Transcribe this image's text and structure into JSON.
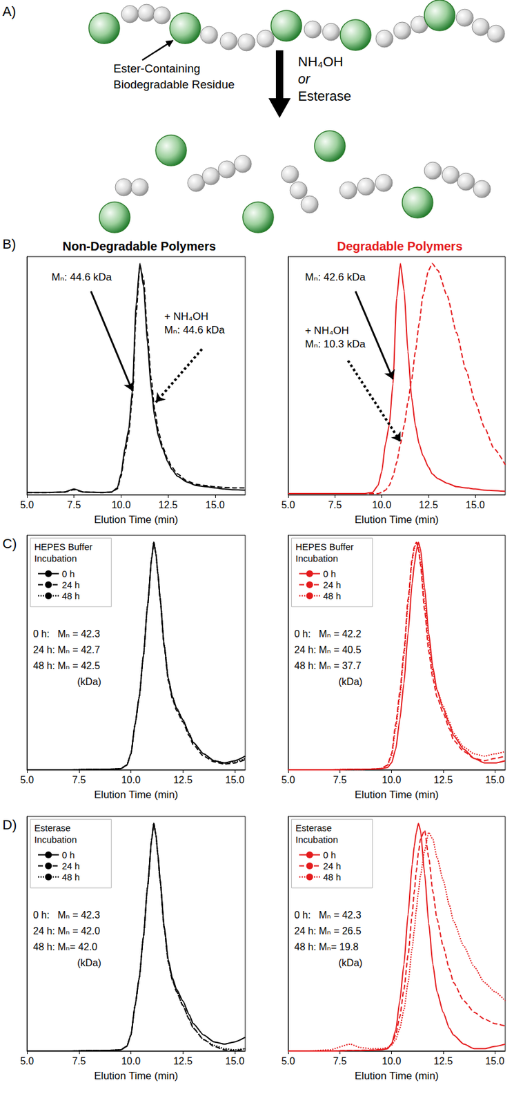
{
  "diagram": {
    "panel": "A)",
    "label": [
      "Ester-Containing",
      "Biodegradable Residue"
    ],
    "reagents": [
      "NH₄OH",
      "or",
      "Esterase"
    ]
  },
  "chart_data": [
    {
      "type": "line",
      "panel": "B)",
      "title": "Non-Degradable Polymers",
      "xlabel": "Elution Time (min)",
      "x": [
        5,
        6,
        7,
        7.5,
        8,
        9,
        9.5,
        9.8,
        10,
        10.2,
        10.4,
        10.6,
        10.8,
        11,
        11.2,
        11.4,
        11.6,
        11.8,
        12,
        12.2,
        12.5,
        12.7,
        13,
        13.5,
        14,
        14.5,
        15,
        15.5,
        16,
        16.6
      ],
      "xlim": [
        5,
        16.6
      ],
      "xticks": [
        {
          "value": 5,
          "label": "5.0"
        },
        7.5,
        {
          "value": 10,
          "label": "10.0"
        },
        12.5,
        {
          "value": 15,
          "label": "15.0"
        }
      ],
      "ylim": [
        0,
        1.03
      ],
      "tick_labels": "x",
      "grid": false,
      "series": [
        {
          "color": "#000000",
          "line_style": "solid",
          "values": [
            0.01,
            0.01,
            0.012,
            0.025,
            0.012,
            0.01,
            0.012,
            0.03,
            0.09,
            0.2,
            0.28,
            0.45,
            0.82,
            1.0,
            0.9,
            0.66,
            0.46,
            0.33,
            0.25,
            0.2,
            0.14,
            0.11,
            0.08,
            0.055,
            0.04,
            0.035,
            0.03,
            0.025,
            0.022,
            0.02
          ]
        },
        {
          "color": "#000000",
          "line_style": "dashed",
          "values": [
            0.01,
            0.01,
            0.012,
            0.022,
            0.012,
            0.01,
            0.012,
            0.025,
            0.08,
            0.18,
            0.26,
            0.42,
            0.78,
            0.99,
            0.93,
            0.7,
            0.5,
            0.36,
            0.27,
            0.21,
            0.15,
            0.12,
            0.09,
            0.06,
            0.045,
            0.04,
            0.035,
            0.032,
            0.03,
            0.03
          ]
        }
      ],
      "annotations": [
        [
          "Mₙ: 44.6 kDa"
        ],
        [
          "+ NH₄OH",
          "Mₙ: 44.6 kDa"
        ]
      ]
    },
    {
      "type": "line",
      "title": "Degradable Polymers",
      "xlabel": "Elution Time (min)",
      "x": [
        5,
        6,
        7,
        7.5,
        8,
        9,
        9.5,
        9.8,
        10,
        10.2,
        10.4,
        10.6,
        10.8,
        11,
        11.2,
        11.4,
        11.6,
        11.8,
        12,
        12.2,
        12.5,
        12.7,
        13,
        13.5,
        14,
        14.5,
        15,
        15.5,
        16,
        16.6
      ],
      "xlim": [
        5,
        16.6
      ],
      "xticks": [
        {
          "value": 5,
          "label": "5.0"
        },
        7.5,
        {
          "value": 10,
          "label": "10.0"
        },
        12.5,
        {
          "value": 15,
          "label": "15.0"
        }
      ],
      "ylim": [
        0,
        1.03
      ],
      "tick_labels": "x",
      "grid": false,
      "series": [
        {
          "color": "#e41a1c",
          "line_style": "solid",
          "values": [
            0.005,
            0.005,
            0.005,
            0.005,
            0.005,
            0.005,
            0.01,
            0.04,
            0.1,
            0.22,
            0.3,
            0.48,
            0.85,
            1.0,
            0.88,
            0.62,
            0.42,
            0.3,
            0.22,
            0.17,
            0.12,
            0.09,
            0.07,
            0.05,
            0.035,
            0.03,
            0.025,
            0.02,
            0.018,
            0.015
          ]
        },
        {
          "color": "#e41a1c",
          "line_style": "dashed",
          "values": [
            0.005,
            0.005,
            0.005,
            0.005,
            0.005,
            0.005,
            0.005,
            0.005,
            0.01,
            0.02,
            0.04,
            0.08,
            0.14,
            0.22,
            0.3,
            0.4,
            0.5,
            0.62,
            0.74,
            0.86,
            0.97,
            1.0,
            0.97,
            0.86,
            0.7,
            0.54,
            0.4,
            0.29,
            0.2,
            0.13
          ]
        }
      ],
      "annotations": [
        [
          "Mₙ: 42.6 kDa"
        ],
        [
          "+ NH₄OH",
          "Mₙ: 10.3 kDa"
        ]
      ]
    },
    {
      "type": "line",
      "panel": "C)",
      "xlabel": "Elution Time (min)",
      "x": [
        5,
        6,
        7,
        8,
        8.5,
        9,
        9.5,
        9.8,
        10,
        10.2,
        10.4,
        10.6,
        10.8,
        11,
        11.1,
        11.2,
        11.3,
        11.4,
        11.6,
        11.8,
        12,
        12.2,
        12.5,
        12.8,
        13,
        13.5,
        14,
        14.5,
        15,
        15.5
      ],
      "xlim": [
        5,
        15.5
      ],
      "xticks": [
        {
          "value": 5,
          "label": "5.0"
        },
        7.5,
        {
          "value": 10,
          "label": "10.0"
        },
        12.5,
        {
          "value": 15,
          "label": "15.0"
        }
      ],
      "ylim": [
        0,
        1.03
      ],
      "tick_labels": "x",
      "grid": false,
      "legend": "upper left",
      "legend_title": "HEPES Buffer Incubation",
      "series": [
        {
          "name": "0 h",
          "color": "#000000",
          "line_style": "solid",
          "values": [
            0,
            0,
            0,
            0.002,
            0.002,
            0.003,
            0.005,
            0.02,
            0.07,
            0.2,
            0.32,
            0.5,
            0.72,
            0.93,
            1.0,
            0.95,
            0.86,
            0.76,
            0.55,
            0.4,
            0.32,
            0.27,
            0.22,
            0.16,
            0.12,
            0.07,
            0.04,
            0.03,
            0.04,
            0.06
          ]
        },
        {
          "name": "24 h",
          "color": "#000000",
          "line_style": "dashed",
          "values": [
            0,
            0,
            0,
            0.002,
            0.002,
            0.003,
            0.005,
            0.02,
            0.07,
            0.2,
            0.32,
            0.5,
            0.72,
            0.93,
            1.0,
            0.95,
            0.86,
            0.75,
            0.54,
            0.39,
            0.31,
            0.26,
            0.21,
            0.15,
            0.11,
            0.06,
            0.035,
            0.025,
            0.03,
            0.045
          ]
        },
        {
          "name": "48 h",
          "color": "#000000",
          "line_style": "dotted",
          "values": [
            0,
            0,
            0,
            0.002,
            0.002,
            0.003,
            0.005,
            0.02,
            0.07,
            0.2,
            0.32,
            0.5,
            0.72,
            0.93,
            1.0,
            0.95,
            0.86,
            0.76,
            0.55,
            0.4,
            0.32,
            0.27,
            0.22,
            0.16,
            0.12,
            0.07,
            0.04,
            0.03,
            0.035,
            0.05
          ]
        }
      ],
      "annotations": [
        [
          "0 h:   Mₙ = 42.3",
          "24 h: Mₙ = 42.7",
          "48 h: Mₙ = 42.5",
          "(kDa)"
        ]
      ]
    },
    {
      "type": "line",
      "xlabel": "Elution Time (min)",
      "x": [
        5,
        6,
        7,
        8,
        8.5,
        9,
        9.5,
        9.8,
        10,
        10.2,
        10.4,
        10.6,
        10.8,
        11,
        11.1,
        11.2,
        11.3,
        11.4,
        11.6,
        11.8,
        12,
        12.2,
        12.5,
        12.8,
        13,
        13.5,
        14,
        14.5,
        15,
        15.5
      ],
      "xlim": [
        5,
        15.5
      ],
      "xticks": [
        {
          "value": 5,
          "label": "5.0"
        },
        7.5,
        {
          "value": 10,
          "label": "10.0"
        },
        12.5,
        {
          "value": 15,
          "label": "15.0"
        }
      ],
      "ylim": [
        0,
        1.03
      ],
      "tick_labels": "x",
      "grid": false,
      "legend": "upper left",
      "legend_title": "HEPES Buffer Incubation",
      "series": [
        {
          "name": "0 h",
          "color": "#e41a1c",
          "line_style": "solid",
          "values": [
            0,
            0,
            0,
            0.002,
            0.002,
            0.003,
            0.005,
            0.01,
            0.03,
            0.09,
            0.22,
            0.38,
            0.6,
            0.82,
            0.9,
            0.96,
            1.0,
            0.97,
            0.8,
            0.6,
            0.45,
            0.35,
            0.27,
            0.2,
            0.15,
            0.09,
            0.05,
            0.03,
            0.03,
            0.04
          ]
        },
        {
          "name": "24 h",
          "color": "#e41a1c",
          "line_style": "dashed",
          "values": [
            0,
            0,
            0,
            0.002,
            0.002,
            0.003,
            0.006,
            0.02,
            0.07,
            0.2,
            0.34,
            0.52,
            0.75,
            0.93,
            0.98,
            1.0,
            0.97,
            0.9,
            0.7,
            0.52,
            0.4,
            0.32,
            0.25,
            0.18,
            0.13,
            0.08,
            0.05,
            0.04,
            0.05,
            0.06
          ]
        },
        {
          "name": "48 h",
          "color": "#e41a1c",
          "line_style": "dotted",
          "values": [
            0,
            0,
            0,
            0.002,
            0.002,
            0.003,
            0.006,
            0.02,
            0.06,
            0.18,
            0.32,
            0.5,
            0.73,
            0.92,
            0.97,
            1.0,
            0.98,
            0.92,
            0.74,
            0.56,
            0.43,
            0.35,
            0.28,
            0.21,
            0.16,
            0.1,
            0.07,
            0.06,
            0.07,
            0.08
          ]
        }
      ],
      "annotations": [
        [
          "0 h:   Mₙ = 42.2",
          "24 h: Mₙ = 40.5",
          "48 h: Mₙ = 37.7",
          "(kDa)"
        ]
      ]
    },
    {
      "type": "line",
      "panel": "D)",
      "xlabel": "Elution Time (min)",
      "x": [
        5,
        6,
        7,
        8,
        8.5,
        9,
        9.5,
        9.8,
        10,
        10.2,
        10.4,
        10.6,
        10.8,
        11,
        11.1,
        11.2,
        11.3,
        11.4,
        11.6,
        11.8,
        12,
        12.2,
        12.5,
        12.8,
        13,
        13.5,
        14,
        14.5,
        15,
        15.5
      ],
      "xlim": [
        5,
        15.5
      ],
      "xticks": [
        {
          "value": 5,
          "label": "5.0"
        },
        7.5,
        {
          "value": 10,
          "label": "10.0"
        },
        12.5,
        {
          "value": 15,
          "label": "15.0"
        }
      ],
      "ylim": [
        0,
        1.03
      ],
      "tick_labels": "x",
      "grid": false,
      "legend": "upper left",
      "legend_title": "Esterase Incubation",
      "series": [
        {
          "name": "0 h",
          "color": "#000000",
          "line_style": "solid",
          "values": [
            0,
            0,
            0,
            0.002,
            0.002,
            0.003,
            0.005,
            0.02,
            0.07,
            0.2,
            0.32,
            0.5,
            0.72,
            0.93,
            1.0,
            0.95,
            0.86,
            0.76,
            0.55,
            0.4,
            0.32,
            0.27,
            0.22,
            0.16,
            0.12,
            0.07,
            0.04,
            0.03,
            0.04,
            0.06
          ]
        },
        {
          "name": "24 h",
          "color": "#000000",
          "line_style": "dashed",
          "values": [
            0,
            0,
            0,
            0.002,
            0.002,
            0.003,
            0.005,
            0.02,
            0.07,
            0.2,
            0.32,
            0.5,
            0.72,
            0.93,
            1.0,
            0.95,
            0.86,
            0.75,
            0.54,
            0.39,
            0.31,
            0.26,
            0.2,
            0.14,
            0.1,
            0.05,
            0.02,
            0.005,
            0,
            0.01
          ]
        },
        {
          "name": "48 h",
          "color": "#000000",
          "line_style": "dotted",
          "values": [
            0,
            0,
            0,
            0.002,
            0.002,
            0.003,
            0.005,
            0.02,
            0.07,
            0.2,
            0.32,
            0.5,
            0.72,
            0.93,
            1.0,
            0.95,
            0.86,
            0.75,
            0.54,
            0.39,
            0.31,
            0.26,
            0.2,
            0.14,
            0.1,
            0.05,
            0.025,
            0.01,
            0.005,
            0.01
          ]
        }
      ],
      "annotations": [
        [
          "0 h:   Mₙ = 42.3",
          "24 h: Mₙ = 42.0",
          "48 h: Mₙ= 42.0",
          "(kDa)"
        ]
      ]
    },
    {
      "type": "line",
      "xlabel": "Elution Time (min)",
      "x": [
        5,
        6,
        7,
        8,
        8.5,
        9,
        9.5,
        9.8,
        10,
        10.2,
        10.4,
        10.6,
        10.8,
        11,
        11.1,
        11.2,
        11.3,
        11.4,
        11.6,
        11.8,
        12,
        12.2,
        12.5,
        12.8,
        13,
        13.5,
        14,
        14.5,
        15,
        15.5
      ],
      "xlim": [
        5,
        15.5
      ],
      "xticks": [
        {
          "value": 5,
          "label": "5.0"
        },
        7.5,
        {
          "value": 10,
          "label": "10.0"
        },
        12.5,
        {
          "value": 15,
          "label": "15.0"
        }
      ],
      "ylim": [
        0,
        1.03
      ],
      "tick_labels": "x",
      "grid": false,
      "legend": "upper left",
      "legend_title": "Esterase Incubation",
      "series": [
        {
          "name": "0 h",
          "color": "#e41a1c",
          "line_style": "solid",
          "values": [
            0,
            0,
            0,
            0.002,
            0.002,
            0.003,
            0.005,
            0.01,
            0.03,
            0.09,
            0.22,
            0.38,
            0.6,
            0.82,
            0.9,
            0.96,
            1.0,
            0.97,
            0.78,
            0.56,
            0.38,
            0.26,
            0.17,
            0.1,
            0.07,
            0.03,
            0.01,
            0.01,
            0.02,
            0.03
          ]
        },
        {
          "name": "24 h",
          "color": "#e41a1c",
          "line_style": "dashed",
          "values": [
            0,
            0,
            0,
            0.003,
            0.003,
            0.004,
            0.006,
            0.01,
            0.03,
            0.07,
            0.15,
            0.27,
            0.42,
            0.6,
            0.7,
            0.79,
            0.87,
            0.93,
            0.97,
            0.85,
            0.7,
            0.58,
            0.46,
            0.36,
            0.3,
            0.22,
            0.17,
            0.14,
            0.12,
            0.11
          ]
        },
        {
          "name": "48 h",
          "color": "#e41a1c",
          "line_style": "dotted",
          "values": [
            0,
            0,
            0.005,
            0.03,
            0.015,
            0.01,
            0.01,
            0.015,
            0.025,
            0.05,
            0.1,
            0.18,
            0.3,
            0.45,
            0.53,
            0.62,
            0.7,
            0.77,
            0.88,
            0.96,
            0.93,
            0.85,
            0.75,
            0.64,
            0.57,
            0.46,
            0.37,
            0.3,
            0.26,
            0.22
          ]
        }
      ],
      "annotations": [
        [
          "0 h:   Mₙ = 42.3",
          "24 h: Mₙ = 26.5",
          "48 h: Mₙ= 19.8",
          "(kDa)"
        ]
      ]
    }
  ]
}
